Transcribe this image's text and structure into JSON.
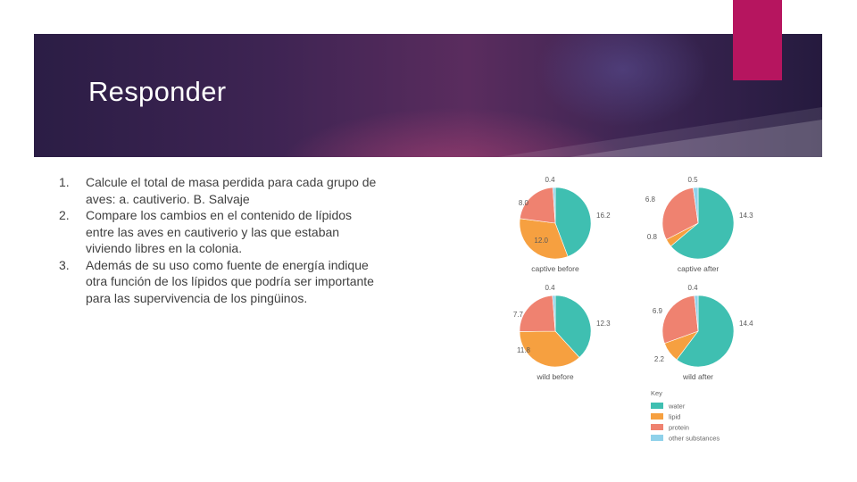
{
  "slide": {
    "title": "Responder",
    "questions": [
      {
        "num": "1.",
        "text": "Calcule el total de masa perdida para cada grupo de aves: a. cautiverio. B. Salvaje"
      },
      {
        "num": "2.",
        "text": "Compare los cambios en el contenido de lípidos entre las aves en cautiverio y las que estaban viviendo libres en la colonia."
      },
      {
        "num": "3.",
        "text": "Además de su uso como fuente de energía indique otra función de los lípidos que podría ser importante para las supervivencia de los pingüinos."
      }
    ]
  },
  "colors": {
    "banner_dark": "#2b1d45",
    "banner_mid": "#5a2c5e",
    "accent": "#b6155f",
    "water": "#3fbfb1",
    "lipid": "#f6a040",
    "protein": "#ef8270",
    "other": "#8fd1ea"
  },
  "chart_data": {
    "type": "pie",
    "key_title": "Key",
    "legend": [
      "water",
      "lipid",
      "protein",
      "other substances"
    ],
    "charts": [
      {
        "title": "captive before",
        "values": [
          16.2,
          12.0,
          8.0,
          0.4
        ],
        "labels": [
          "16.2",
          "12.0",
          "8.0",
          "0.4"
        ]
      },
      {
        "title": "captive after",
        "values": [
          14.3,
          0.8,
          6.8,
          0.5
        ],
        "labels": [
          "14.3",
          "0.8",
          "6.8",
          "0.5"
        ]
      },
      {
        "title": "wild before",
        "values": [
          12.3,
          11.8,
          7.7,
          0.4
        ],
        "labels": [
          "12.3",
          "11.8",
          "7.7",
          "0.4"
        ]
      },
      {
        "title": "wild after",
        "values": [
          14.4,
          2.2,
          6.9,
          0.4
        ],
        "labels": [
          "14.4",
          "2.2",
          "6.9",
          "0.4"
        ]
      }
    ]
  }
}
